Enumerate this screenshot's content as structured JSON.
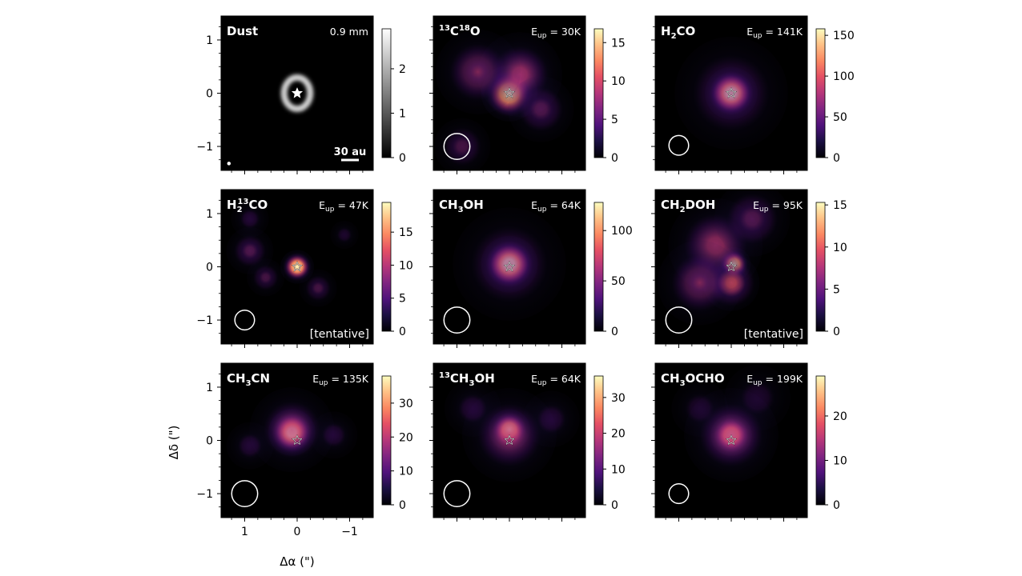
{
  "figure": {
    "xlabel": "Δα (\")",
    "ylabel": "Δδ (\")",
    "x_ticks": [
      1,
      0,
      -1
    ],
    "x_tick_labels": [
      "1",
      "0",
      "−1"
    ],
    "y_ticks": [
      1,
      0,
      -1
    ],
    "y_tick_labels": [
      "1",
      "0",
      "−1"
    ],
    "xlim": [
      1.45,
      -1.45
    ],
    "ylim": [
      -1.45,
      1.45
    ]
  },
  "chart_data": [
    {
      "type": "heatmap",
      "name": "Dust",
      "title_main": "Dust",
      "title_sup": "",
      "title_sub": "",
      "title_right": "0.9 mm",
      "colormap": "gray",
      "cbar_ticks": [
        0,
        1,
        2
      ],
      "cbar_max": 2.9,
      "scalebar_label": "30 au",
      "beam": {
        "x": 1.3,
        "y": -1.32,
        "r": 0.03
      },
      "note": "",
      "emission": [
        {
          "type": "ring",
          "x": 0.0,
          "y": 0.0,
          "rx": 0.25,
          "ry": 0.3,
          "w": 0.09,
          "intensity": 1.0
        }
      ]
    },
    {
      "type": "heatmap",
      "name": "13C18O",
      "title_main": "C",
      "title_pre_sup": "13",
      "title_sup": "18",
      "title_tail": "O",
      "title_right_E": "E",
      "title_right_sub": "up",
      "title_right": " = 30K",
      "colormap": "magma",
      "cbar_ticks": [
        0,
        5,
        10,
        15
      ],
      "cbar_max": 16.8,
      "beam": {
        "x": 1.0,
        "y": -1.0,
        "r": 0.33
      },
      "note": "",
      "emission": [
        {
          "type": "blob",
          "x": 0.0,
          "y": 0.0,
          "s": 0.3,
          "intensity": 0.95
        },
        {
          "type": "blob",
          "x": -0.2,
          "y": 0.35,
          "s": 0.45,
          "intensity": 0.5
        },
        {
          "type": "blob",
          "x": 0.6,
          "y": 0.4,
          "s": 0.45,
          "intensity": 0.4
        },
        {
          "type": "blob",
          "x": -0.6,
          "y": -0.3,
          "s": 0.35,
          "intensity": 0.35
        },
        {
          "type": "blob",
          "x": 0.9,
          "y": -1.0,
          "s": 0.3,
          "intensity": 0.3
        }
      ]
    },
    {
      "type": "heatmap",
      "name": "H2CO",
      "title_main": "H",
      "title_sub": "2",
      "title_tail": "CO",
      "title_right_E": "E",
      "title_right_sub": "up",
      "title_right": " = 141K",
      "colormap": "magma",
      "cbar_ticks": [
        0,
        50,
        100,
        150
      ],
      "cbar_max": 158,
      "beam": {
        "x": 1.0,
        "y": -0.98,
        "r": 0.25
      },
      "note": "",
      "emission": [
        {
          "type": "blob",
          "x": 0.0,
          "y": 0.0,
          "s": 0.28,
          "intensity": 1.0
        },
        {
          "type": "blob",
          "x": 0.0,
          "y": 0.0,
          "s": 0.6,
          "intensity": 0.35
        }
      ]
    },
    {
      "type": "heatmap",
      "name": "H2 13CO",
      "title_main": "H",
      "title_sub": "2",
      "title_sup": "13",
      "title_tail": "CO",
      "title_right_E": "E",
      "title_right_sub": "up",
      "title_right": " = 47K",
      "colormap": "magma",
      "cbar_ticks": [
        0,
        5,
        10,
        15
      ],
      "cbar_max": 19.5,
      "beam": {
        "x": 1.0,
        "y": -1.0,
        "r": 0.25
      },
      "note": "[tentative]",
      "emission": [
        {
          "type": "blob",
          "x": 0.0,
          "y": 0.0,
          "s": 0.18,
          "intensity": 0.95
        },
        {
          "type": "blob",
          "x": 0.9,
          "y": 0.3,
          "s": 0.25,
          "intensity": 0.35
        },
        {
          "type": "blob",
          "x": 0.6,
          "y": -0.2,
          "s": 0.2,
          "intensity": 0.3
        },
        {
          "type": "blob",
          "x": -0.4,
          "y": -0.4,
          "s": 0.2,
          "intensity": 0.3
        },
        {
          "type": "blob",
          "x": 0.9,
          "y": 0.9,
          "s": 0.2,
          "intensity": 0.25
        },
        {
          "type": "blob",
          "x": -0.9,
          "y": 0.6,
          "s": 0.15,
          "intensity": 0.2
        }
      ]
    },
    {
      "type": "heatmap",
      "name": "CH3OH",
      "title_main": "CH",
      "title_sub": "3",
      "title_tail": "OH",
      "title_right_E": "E",
      "title_right_sub": "up",
      "title_right": " = 64K",
      "colormap": "magma",
      "cbar_ticks": [
        0,
        50,
        100
      ],
      "cbar_max": 128,
      "beam": {
        "x": 1.0,
        "y": -1.0,
        "r": 0.33
      },
      "note": "",
      "emission": [
        {
          "type": "blob",
          "x": 0.0,
          "y": 0.05,
          "s": 0.3,
          "intensity": 1.0
        },
        {
          "type": "blob",
          "x": 0.0,
          "y": 0.05,
          "s": 0.6,
          "intensity": 0.35
        }
      ]
    },
    {
      "type": "heatmap",
      "name": "CH2DOH",
      "title_main": "CH",
      "title_sub": "2",
      "title_tail": "DOH",
      "title_right_E": "E",
      "title_right_sub": "up",
      "title_right": " = 95K",
      "colormap": "magma",
      "cbar_ticks": [
        0,
        5,
        10,
        15
      ],
      "cbar_max": 15.3,
      "beam": {
        "x": 1.0,
        "y": -1.0,
        "r": 0.33
      },
      "note": "[tentative]",
      "emission": [
        {
          "type": "blob",
          "x": -0.05,
          "y": 0.05,
          "s": 0.18,
          "intensity": 0.95
        },
        {
          "type": "blob",
          "x": 0.0,
          "y": -0.3,
          "s": 0.3,
          "intensity": 0.55
        },
        {
          "type": "blob",
          "x": 0.3,
          "y": 0.4,
          "s": 0.5,
          "intensity": 0.45
        },
        {
          "type": "blob",
          "x": 0.6,
          "y": -0.3,
          "s": 0.45,
          "intensity": 0.4
        },
        {
          "type": "blob",
          "x": -0.4,
          "y": 0.9,
          "s": 0.4,
          "intensity": 0.35
        }
      ]
    },
    {
      "type": "heatmap",
      "name": "CH3CN",
      "title_main": "CH",
      "title_sub": "3",
      "title_tail": "CN",
      "title_right_E": "E",
      "title_right_sub": "up",
      "title_right": " = 135K",
      "colormap": "magma",
      "cbar_ticks": [
        0,
        10,
        20,
        30
      ],
      "cbar_max": 38,
      "beam": {
        "x": 1.0,
        "y": -1.0,
        "r": 0.33
      },
      "note": "",
      "emission": [
        {
          "type": "blob",
          "x": 0.1,
          "y": 0.15,
          "s": 0.25,
          "intensity": 1.0
        },
        {
          "type": "blob",
          "x": 0.1,
          "y": 0.2,
          "s": 0.45,
          "intensity": 0.45
        },
        {
          "type": "blob",
          "x": 0.9,
          "y": -0.1,
          "s": 0.25,
          "intensity": 0.25
        },
        {
          "type": "blob",
          "x": -0.7,
          "y": 0.1,
          "s": 0.25,
          "intensity": 0.25
        }
      ]
    },
    {
      "type": "heatmap",
      "name": "13CH3OH",
      "title_main": "CH",
      "title_pre_sup": "13",
      "title_sub": "3",
      "title_tail": "OH",
      "title_right_E": "E",
      "title_right_sub": "up",
      "title_right": " = 64K",
      "colormap": "magma",
      "cbar_ticks": [
        0,
        10,
        20,
        30
      ],
      "cbar_max": 36,
      "beam": {
        "x": 1.0,
        "y": -1.0,
        "r": 0.33
      },
      "note": "",
      "emission": [
        {
          "type": "blob",
          "x": 0.0,
          "y": 0.2,
          "s": 0.22,
          "intensity": 0.95
        },
        {
          "type": "blob",
          "x": 0.0,
          "y": 0.1,
          "s": 0.5,
          "intensity": 0.45
        },
        {
          "type": "blob",
          "x": -0.8,
          "y": 0.4,
          "s": 0.3,
          "intensity": 0.25
        },
        {
          "type": "blob",
          "x": 0.7,
          "y": 0.6,
          "s": 0.3,
          "intensity": 0.25
        }
      ]
    },
    {
      "type": "heatmap",
      "name": "CH3OCHO",
      "title_main": "CH",
      "title_sub": "3",
      "title_tail": "OCHO",
      "title_right_E": "E",
      "title_right_sub": "up",
      "title_right": " = 199K",
      "colormap": "magma",
      "cbar_ticks": [
        0,
        10,
        20
      ],
      "cbar_max": 29,
      "beam": {
        "x": 1.0,
        "y": -1.0,
        "r": 0.25
      },
      "note": "",
      "emission": [
        {
          "type": "blob",
          "x": 0.0,
          "y": 0.1,
          "s": 0.22,
          "intensity": 0.95
        },
        {
          "type": "blob",
          "x": 0.0,
          "y": 0.1,
          "s": 0.5,
          "intensity": 0.5
        },
        {
          "type": "blob",
          "x": -0.5,
          "y": 0.8,
          "s": 0.35,
          "intensity": 0.2
        },
        {
          "type": "blob",
          "x": 0.6,
          "y": 0.6,
          "s": 0.3,
          "intensity": 0.2
        }
      ]
    }
  ]
}
